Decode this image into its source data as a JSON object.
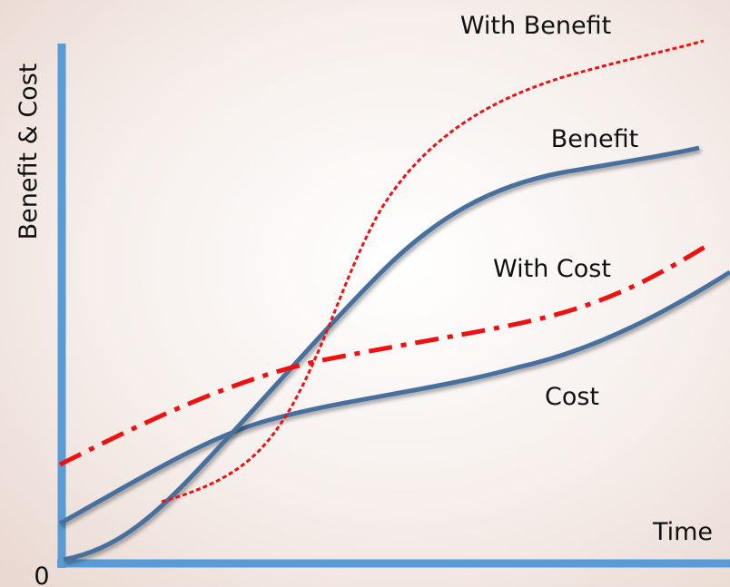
{
  "axes": {
    "y_label": "Benefit & Cost",
    "x_label": "Time",
    "origin": "0"
  },
  "curves": [
    {
      "label": "With Benefit"
    },
    {
      "label": "Benefit"
    },
    {
      "label": "With Cost"
    },
    {
      "label": "Cost"
    }
  ]
}
